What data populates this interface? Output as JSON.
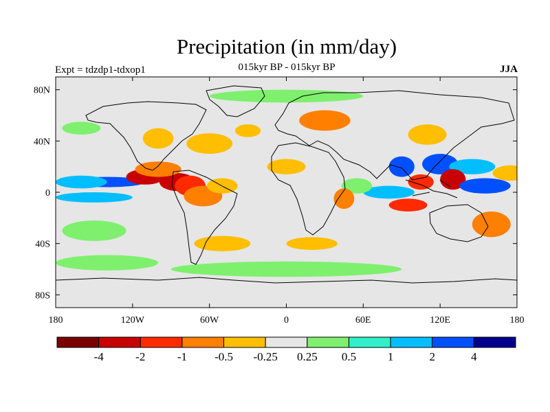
{
  "title": "Precipitation (in mm/day)",
  "subtitle": "015kyr BP - 015kyr BP",
  "left_label": "Expt = tdzdp1-tdxop1",
  "right_label": "JJA",
  "map": {
    "lat_ticks": [
      "80N",
      "40N",
      "0",
      "40S",
      "80S"
    ],
    "lon_ticks": [
      "180",
      "120W",
      "60W",
      "0",
      "60E",
      "120E",
      "180"
    ],
    "neutral_color": "#e6e6e6"
  },
  "colorbar": {
    "colors": [
      "#7a0000",
      "#c80000",
      "#ff2a00",
      "#ff7f00",
      "#ffbe00",
      "#e6e6e6",
      "#7ef06e",
      "#2ff0c8",
      "#00beff",
      "#0050ff",
      "#00008c"
    ],
    "labels": [
      "-4",
      "-2",
      "-1",
      "-0.5",
      "-0.25",
      "0.25",
      "0.5",
      "1",
      "2",
      "4"
    ]
  },
  "anomalies": [
    {
      "lon": -140,
      "lat": 8,
      "rx": 30,
      "ry": 4,
      "color": "#0050ff"
    },
    {
      "lon": -160,
      "lat": 8,
      "rx": 20,
      "ry": 5,
      "color": "#00beff"
    },
    {
      "lon": -150,
      "lat": -4,
      "rx": 30,
      "ry": 4,
      "color": "#00beff"
    },
    {
      "lon": -110,
      "lat": 12,
      "rx": 15,
      "ry": 6,
      "color": "#c80000"
    },
    {
      "lon": -85,
      "lat": 8,
      "rx": 14,
      "ry": 7,
      "color": "#c80000"
    },
    {
      "lon": -75,
      "lat": 5,
      "rx": 12,
      "ry": 8,
      "color": "#ff2a00"
    },
    {
      "lon": -100,
      "lat": 18,
      "rx": 18,
      "ry": 6,
      "color": "#ff7f00"
    },
    {
      "lon": -65,
      "lat": -3,
      "rx": 15,
      "ry": 8,
      "color": "#ff7f00"
    },
    {
      "lon": -50,
      "lat": 5,
      "rx": 12,
      "ry": 6,
      "color": "#ffbe00"
    },
    {
      "lon": -60,
      "lat": 38,
      "rx": 18,
      "ry": 8,
      "color": "#ffbe00"
    },
    {
      "lon": -30,
      "lat": 48,
      "rx": 10,
      "ry": 5,
      "color": "#ffbe00"
    },
    {
      "lon": 30,
      "lat": 56,
      "rx": 20,
      "ry": 8,
      "color": "#ff7f00"
    },
    {
      "lon": -100,
      "lat": 42,
      "rx": 12,
      "ry": 8,
      "color": "#ffbe00"
    },
    {
      "lon": 90,
      "lat": 20,
      "rx": 10,
      "ry": 8,
      "color": "#0050ff"
    },
    {
      "lon": 120,
      "lat": 22,
      "rx": 14,
      "ry": 8,
      "color": "#0050ff"
    },
    {
      "lon": 145,
      "lat": 20,
      "rx": 18,
      "ry": 6,
      "color": "#00beff"
    },
    {
      "lon": 130,
      "lat": 10,
      "rx": 10,
      "ry": 8,
      "color": "#c80000"
    },
    {
      "lon": 105,
      "lat": 8,
      "rx": 10,
      "ry": 6,
      "color": "#ff2a00"
    },
    {
      "lon": 155,
      "lat": 5,
      "rx": 20,
      "ry": 6,
      "color": "#0050ff"
    },
    {
      "lon": 175,
      "lat": 15,
      "rx": 14,
      "ry": 6,
      "color": "#ffbe00"
    },
    {
      "lon": 80,
      "lat": 0,
      "rx": 20,
      "ry": 5,
      "color": "#00beff"
    },
    {
      "lon": 95,
      "lat": -10,
      "rx": 15,
      "ry": 5,
      "color": "#ff2a00"
    },
    {
      "lon": 55,
      "lat": 5,
      "rx": 12,
      "ry": 6,
      "color": "#7ef06e"
    },
    {
      "lon": 45,
      "lat": -5,
      "rx": 8,
      "ry": 8,
      "color": "#ff7f00"
    },
    {
      "lon": 0,
      "lat": 20,
      "rx": 15,
      "ry": 6,
      "color": "#ffbe00"
    },
    {
      "lon": -50,
      "lat": -40,
      "rx": 22,
      "ry": 6,
      "color": "#ffbe00"
    },
    {
      "lon": 20,
      "lat": -40,
      "rx": 20,
      "ry": 5,
      "color": "#ffbe00"
    },
    {
      "lon": 160,
      "lat": -25,
      "rx": 15,
      "ry": 10,
      "color": "#ff7f00"
    },
    {
      "lon": -150,
      "lat": -30,
      "rx": 25,
      "ry": 8,
      "color": "#7ef06e"
    },
    {
      "lon": 0,
      "lat": -60,
      "rx": 90,
      "ry": 6,
      "color": "#7ef06e"
    },
    {
      "lon": -140,
      "lat": -55,
      "rx": 40,
      "ry": 6,
      "color": "#7ef06e"
    },
    {
      "lon": 0,
      "lat": 75,
      "rx": 60,
      "ry": 5,
      "color": "#7ef06e"
    },
    {
      "lon": -160,
      "lat": 50,
      "rx": 15,
      "ry": 5,
      "color": "#7ef06e"
    },
    {
      "lon": 110,
      "lat": 45,
      "rx": 15,
      "ry": 8,
      "color": "#ffbe00"
    }
  ]
}
